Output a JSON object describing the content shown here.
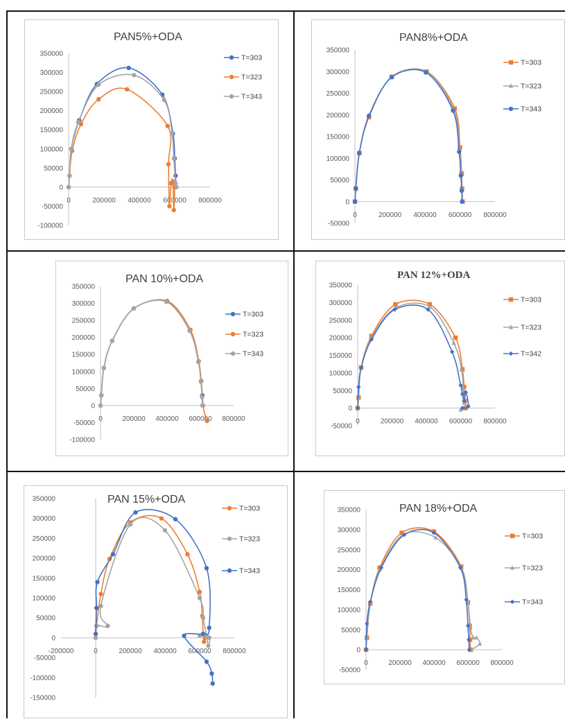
{
  "chart_data": [
    {
      "type": "scatter",
      "title": "PAN5%+ODA",
      "xticks": [
        "0",
        "200000",
        "400000",
        "600000",
        "800000"
      ],
      "yticks": [
        "350000",
        "300000",
        "250000",
        "200000",
        "150000",
        "100000",
        "50000",
        "0",
        "-50000",
        "-100000"
      ],
      "xlim": [
        0,
        800000
      ],
      "ylim": [
        -100000,
        350000
      ],
      "grid": false,
      "legend": "right",
      "series": [
        {
          "name": "T=303",
          "color": "#4472c4",
          "marker": "circle",
          "x": [
            0,
            5000,
            15000,
            60000,
            160000,
            340000,
            530000,
            590000,
            600000,
            605000,
            608000
          ],
          "y": [
            0,
            30000,
            100000,
            175000,
            270000,
            312000,
            242000,
            140000,
            75000,
            30000,
            0
          ]
        },
        {
          "name": "T=323",
          "color": "#ed7d31",
          "marker": "circle",
          "x": [
            0,
            5000,
            20000,
            70000,
            170000,
            330000,
            560000,
            565000,
            570000,
            580000,
            590000,
            595000,
            600000
          ],
          "y": [
            0,
            30000,
            95000,
            165000,
            230000,
            256000,
            160000,
            60000,
            -50000,
            10000,
            15000,
            -60000,
            0
          ]
        },
        {
          "name": "T=343",
          "color": "#a5a5a5",
          "marker": "circle",
          "x": [
            0,
            5000,
            15000,
            55000,
            170000,
            370000,
            540000,
            585000,
            595000,
            605000,
            610000
          ],
          "y": [
            0,
            30000,
            100000,
            170000,
            268000,
            293000,
            228000,
            140000,
            75000,
            10000,
            0
          ]
        }
      ]
    },
    {
      "type": "scatter",
      "title": "PAN8%+ODA",
      "xticks": [
        "0",
        "200000",
        "400000",
        "600000",
        "800000"
      ],
      "yticks": [
        "350000",
        "300000",
        "250000",
        "200000",
        "150000",
        "100000",
        "50000",
        "0",
        "-50000"
      ],
      "xlim": [
        0,
        800000
      ],
      "ylim": [
        -50000,
        350000
      ],
      "grid": false,
      "legend": "right",
      "series": [
        {
          "name": "T=303",
          "color": "#ed7d31",
          "marker": "square",
          "x": [
            0,
            5000,
            25000,
            80000,
            210000,
            410000,
            570000,
            600000,
            610000,
            612000,
            615000
          ],
          "y": [
            0,
            30000,
            112000,
            195000,
            288000,
            300000,
            215000,
            125000,
            65000,
            30000,
            0
          ]
        },
        {
          "name": "T=323",
          "color": "#a5a5a5",
          "marker": "triangle",
          "x": [
            0,
            5000,
            25000,
            80000,
            210000,
            410000,
            565000,
            598000,
            608000,
            612000,
            614000
          ],
          "y": [
            0,
            30000,
            112000,
            197000,
            288000,
            300000,
            212000,
            120000,
            63000,
            30000,
            0
          ]
        },
        {
          "name": "T=343",
          "color": "#4472c4",
          "marker": "circle",
          "x": [
            0,
            5000,
            25000,
            80000,
            210000,
            405000,
            560000,
            595000,
            605000,
            610000,
            612000
          ],
          "y": [
            0,
            30000,
            112000,
            198000,
            287000,
            298000,
            210000,
            115000,
            60000,
            25000,
            0
          ]
        }
      ]
    },
    {
      "type": "scatter",
      "title": "PAN 10%+ODA",
      "xticks": [
        "0",
        "200000",
        "400000",
        "600000",
        "800000"
      ],
      "yticks": [
        "350000",
        "300000",
        "250000",
        "200000",
        "150000",
        "100000",
        "50000",
        "0",
        "-50000",
        "-100000"
      ],
      "xlim": [
        0,
        800000
      ],
      "ylim": [
        -100000,
        350000
      ],
      "grid": false,
      "legend": "right",
      "series": [
        {
          "name": "T=303",
          "color": "#4472c4",
          "marker": "circle",
          "x": [
            0,
            5000,
            20000,
            70000,
            200000,
            400000,
            540000,
            590000,
            605000,
            612000,
            615000
          ],
          "y": [
            0,
            30000,
            110000,
            190000,
            285000,
            307000,
            222000,
            130000,
            72000,
            30000,
            0
          ]
        },
        {
          "name": "T=323",
          "color": "#ed7d31",
          "marker": "circle",
          "x": [
            0,
            5000,
            20000,
            70000,
            200000,
            400000,
            540000,
            590000,
            605000,
            615000,
            640000
          ],
          "y": [
            0,
            30000,
            110000,
            190000,
            285000,
            306000,
            222000,
            130000,
            72000,
            0,
            -45000
          ]
        },
        {
          "name": "T=343",
          "color": "#a5a5a5",
          "marker": "circle",
          "x": [
            0,
            5000,
            20000,
            70000,
            200000,
            395000,
            535000,
            588000,
            603000,
            610000,
            612000
          ],
          "y": [
            0,
            30000,
            110000,
            190000,
            285000,
            305000,
            220000,
            128000,
            70000,
            25000,
            0
          ]
        }
      ]
    },
    {
      "type": "scatter",
      "title": "PAN 12%+ODA",
      "xticks": [
        "0",
        "200000",
        "400000",
        "600000",
        "800000"
      ],
      "yticks": [
        "350000",
        "300000",
        "250000",
        "200000",
        "150000",
        "100000",
        "50000",
        "0",
        "-50000"
      ],
      "xlim": [
        0,
        800000
      ],
      "ylim": [
        -50000,
        350000
      ],
      "grid": false,
      "legend": "right",
      "series": [
        {
          "name": "T=303",
          "color": "#ed7d31",
          "marker": "square",
          "x": [
            0,
            5000,
            20000,
            80000,
            220000,
            420000,
            570000,
            610000,
            620000,
            625000,
            628000
          ],
          "y": [
            0,
            30000,
            115000,
            205000,
            295000,
            295000,
            200000,
            110000,
            60000,
            20000,
            0
          ]
        },
        {
          "name": "T=323",
          "color": "#a5a5a5",
          "marker": "triangle",
          "x": [
            0,
            5000,
            20000,
            80000,
            220000,
            420000,
            560000,
            605000,
            615000,
            620000,
            640000,
            600000
          ],
          "y": [
            0,
            30000,
            115000,
            200000,
            285000,
            288000,
            185000,
            110000,
            55000,
            15000,
            5000,
            -5000
          ]
        },
        {
          "name": "T=342",
          "color": "#4472c4",
          "marker": "diamond",
          "x": [
            0,
            5000,
            20000,
            80000,
            215000,
            410000,
            550000,
            600000,
            610000,
            620000,
            630000,
            645000,
            610000
          ],
          "y": [
            0,
            60000,
            115000,
            195000,
            280000,
            280000,
            160000,
            65000,
            40000,
            20000,
            45000,
            5000,
            0
          ]
        }
      ]
    },
    {
      "type": "scatter",
      "title": "PAN 15%+ODA",
      "xticks": [
        "-200000",
        "0",
        "200000",
        "400000",
        "600000",
        "800000"
      ],
      "yticks": [
        "350000",
        "300000",
        "250000",
        "200000",
        "150000",
        "100000",
        "50000",
        "0",
        "-50000",
        "-100000",
        "-150000"
      ],
      "xlim": [
        -200000,
        800000
      ],
      "ylim": [
        -150000,
        350000
      ],
      "grid": false,
      "legend": "right",
      "series": [
        {
          "name": "T=303",
          "color": "#ed7d31",
          "marker": "circle",
          "x": [
            0,
            5000,
            30000,
            80000,
            200000,
            380000,
            530000,
            600000,
            615000,
            620000,
            625000,
            630000
          ],
          "y": [
            0,
            30000,
            110000,
            198000,
            290000,
            300000,
            210000,
            115000,
            55000,
            10000,
            -10000,
            0
          ]
        },
        {
          "name": "T=323",
          "color": "#a5a5a5",
          "marker": "circle",
          "x": [
            0,
            5000,
            70000,
            30000,
            200000,
            400000,
            600000,
            620000,
            640000,
            650000,
            655000,
            600000
          ],
          "y": [
            0,
            30000,
            30000,
            80000,
            285000,
            270000,
            100000,
            50000,
            5000,
            -20000,
            0,
            5000
          ]
        },
        {
          "name": "T=343",
          "color": "#4472c4",
          "marker": "circle",
          "x": [
            0,
            5000,
            10000,
            100000,
            230000,
            460000,
            640000,
            655000,
            620000,
            510000,
            640000,
            670000,
            675000
          ],
          "y": [
            10000,
            75000,
            140000,
            210000,
            315000,
            298000,
            175000,
            25000,
            10000,
            5000,
            -60000,
            -90000,
            -115000
          ]
        }
      ]
    },
    {
      "type": "scatter",
      "title": "PAN 18%+ODA",
      "xticks": [
        "0",
        "200000",
        "400000",
        "600000",
        "800000"
      ],
      "yticks": [
        "350000",
        "300000",
        "250000",
        "200000",
        "150000",
        "100000",
        "50000",
        "0",
        "-50000"
      ],
      "xlim": [
        0,
        800000
      ],
      "ylim": [
        -50000,
        350000
      ],
      "grid": false,
      "legend": "right",
      "series": [
        {
          "name": "T=303",
          "color": "#ed7d31",
          "marker": "square",
          "x": [
            0,
            5000,
            25000,
            80000,
            210000,
            400000,
            560000,
            600000,
            610000,
            612000,
            615000
          ],
          "y": [
            0,
            30000,
            115000,
            205000,
            292000,
            295000,
            208000,
            118000,
            60000,
            25000,
            0
          ]
        },
        {
          "name": "T=323",
          "color": "#a5a5a5",
          "marker": "triangle",
          "x": [
            0,
            5000,
            25000,
            80000,
            220000,
            410000,
            560000,
            600000,
            615000,
            630000,
            650000,
            670000,
            620000
          ],
          "y": [
            0,
            30000,
            115000,
            200000,
            288000,
            280000,
            205000,
            120000,
            55000,
            30000,
            30000,
            15000,
            0
          ]
        },
        {
          "name": "T=343",
          "color": "#4472c4",
          "marker": "diamond",
          "x": [
            0,
            5000,
            25000,
            90000,
            225000,
            400000,
            555000,
            590000,
            600000,
            605000,
            608000
          ],
          "y": [
            0,
            65000,
            120000,
            205000,
            287000,
            292000,
            205000,
            125000,
            60000,
            25000,
            0
          ]
        }
      ]
    }
  ]
}
